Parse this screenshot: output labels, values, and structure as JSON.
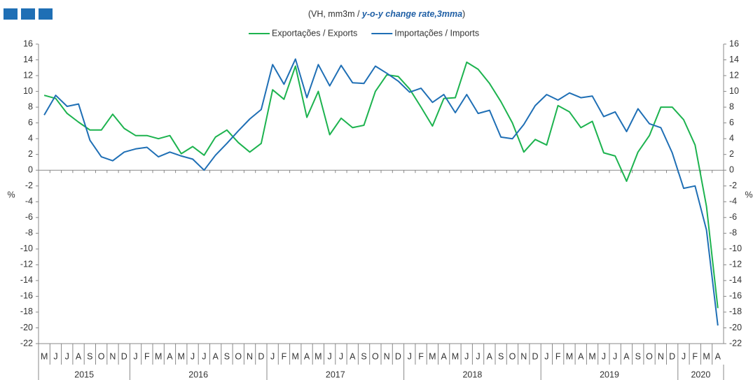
{
  "chart_data": {
    "type": "line",
    "subtitle_prefix": "(VH, mm3m / ",
    "subtitle_emphasis": "y-o-y change rate,3mma",
    "subtitle_suffix": ")",
    "y_label": "%",
    "categories": [
      "M",
      "J",
      "J",
      "A",
      "S",
      "O",
      "N",
      "D",
      "J",
      "F",
      "M",
      "A",
      "M",
      "J",
      "J",
      "A",
      "S",
      "O",
      "N",
      "D",
      "J",
      "F",
      "M",
      "A",
      "M",
      "J",
      "J",
      "A",
      "S",
      "O",
      "N",
      "D",
      "J",
      "F",
      "M",
      "A",
      "M",
      "J",
      "J",
      "A",
      "S",
      "O",
      "N",
      "D",
      "J",
      "F",
      "M",
      "A",
      "M",
      "J",
      "J",
      "A",
      "S",
      "O",
      "N",
      "D",
      "J",
      "F",
      "M",
      "A"
    ],
    "years": [
      "2015",
      "2016",
      "2017",
      "2018",
      "2019",
      "2020"
    ],
    "series": [
      {
        "name": "Exportações / Exports",
        "color": "#1db34f",
        "values": [
          9.5,
          9.1,
          7.2,
          6.1,
          5.1,
          5.1,
          7.1,
          5.3,
          4.4,
          4.4,
          4.0,
          4.4,
          2.1,
          3.0,
          1.9,
          4.2,
          5.1,
          3.5,
          2.3,
          3.4,
          10.2,
          9.0,
          13.2,
          6.7,
          10.0,
          4.5,
          6.6,
          5.4,
          5.7,
          10.0,
          12.1,
          11.9,
          10.3,
          8.0,
          5.6,
          9.1,
          9.2,
          13.7,
          12.8,
          11.0,
          8.7,
          6.0,
          2.3,
          3.9,
          3.2,
          8.2,
          7.4,
          5.4,
          6.2,
          2.2,
          1.8,
          -1.4,
          2.3,
          4.4,
          8.0,
          8.0,
          6.4,
          3.2,
          -4.6,
          -17.5
        ]
      },
      {
        "name": "Importações / Imports",
        "color": "#1f6fb5",
        "values": [
          7.0,
          9.5,
          8.1,
          8.4,
          3.8,
          1.7,
          1.2,
          2.3,
          2.7,
          2.9,
          1.7,
          2.3,
          1.8,
          1.4,
          0.0,
          1.9,
          3.4,
          5.0,
          6.5,
          7.7,
          13.4,
          10.9,
          14.1,
          9.2,
          13.4,
          10.7,
          13.3,
          11.1,
          11.0,
          13.2,
          12.3,
          11.3,
          9.9,
          10.4,
          8.6,
          9.6,
          7.3,
          9.6,
          7.2,
          7.6,
          4.2,
          4.0,
          5.8,
          8.2,
          9.6,
          8.9,
          9.8,
          9.2,
          9.4,
          6.8,
          7.4,
          4.9,
          7.8,
          5.9,
          5.4,
          2.2,
          -2.3,
          -2.0,
          -7.6,
          -19.7
        ]
      }
    ],
    "ylim": [
      -22,
      16
    ],
    "yticks": [
      16,
      14,
      12,
      10,
      8,
      6,
      4,
      2,
      0,
      -2,
      -4,
      -6,
      -8,
      -10,
      -12,
      -14,
      -16,
      -18,
      -20,
      -22
    ],
    "legend": "top"
  }
}
